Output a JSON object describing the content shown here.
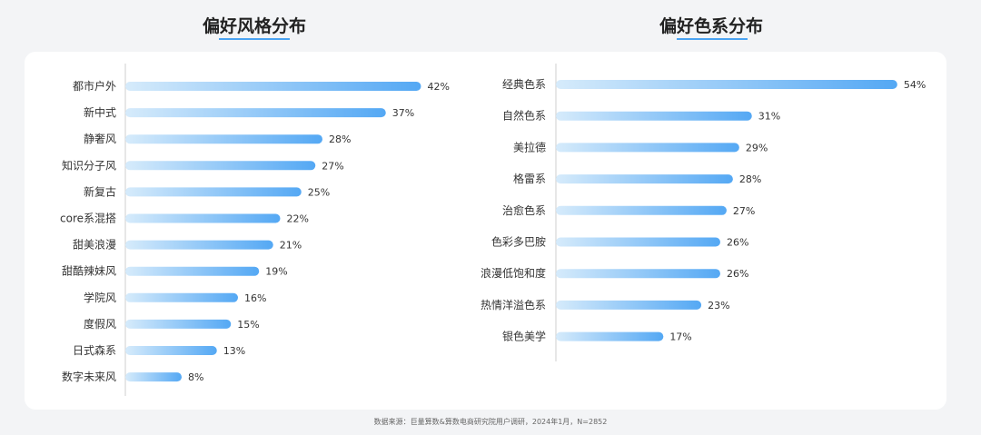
{
  "panels": {
    "left": {
      "title": "偏好风格分布"
    },
    "right": {
      "title": "偏好色系分布"
    }
  },
  "colors": {
    "bar_start": "#d6ebfb",
    "bar_end": "#54a8f4",
    "axis": "#cfcfcf",
    "accent": "#4aa3f2"
  },
  "chart_data": [
    {
      "type": "bar",
      "orientation": "horizontal",
      "title": "偏好风格分布",
      "categories": [
        "都市户外",
        "新中式",
        "静奢风",
        "知识分子风",
        "新复古",
        "core系混搭",
        "甜美浪漫",
        "甜酷辣妹风",
        "学院风",
        "度假风",
        "日式森系",
        "数字未来风"
      ],
      "values": [
        42,
        37,
        28,
        27,
        25,
        22,
        21,
        19,
        16,
        15,
        13,
        8
      ],
      "value_labels": [
        "42%",
        "37%",
        "28%",
        "27%",
        "25%",
        "22%",
        "21%",
        "19%",
        "16%",
        "15%",
        "13%",
        "8%"
      ],
      "unit": "%",
      "grid": false
    },
    {
      "type": "bar",
      "orientation": "horizontal",
      "title": "偏好色系分布",
      "categories": [
        "经典色系",
        "自然色系",
        "美拉德",
        "格雷系",
        "治愈色系",
        "色彩多巴胺",
        "浪漫低饱和度",
        "热情洋溢色系",
        "银色美学"
      ],
      "values": [
        54,
        31,
        29,
        28,
        27,
        26,
        26,
        23,
        17
      ],
      "value_labels": [
        "54%",
        "31%",
        "29%",
        "28%",
        "27%",
        "26%",
        "26%",
        "23%",
        "17%"
      ],
      "unit": "%",
      "grid": false
    }
  ],
  "footer": {
    "source": "数据来源：巨量算数&算数电商研究院用户调研，2024年1月，N=2852"
  }
}
